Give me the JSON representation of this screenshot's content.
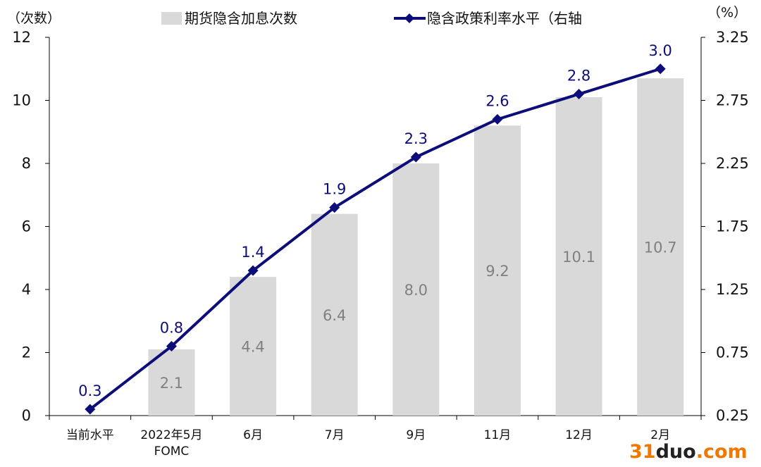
{
  "chart_data": {
    "type": "bar+line",
    "left_axis_unit": "（次数）",
    "right_axis_unit": "（%）",
    "categories": [
      "当前水平",
      "2022年5月\nFOMC",
      "6月",
      "7月",
      "9月",
      "11月",
      "12月",
      "2月"
    ],
    "series": [
      {
        "name": "期货隐含加息次数",
        "type": "bar",
        "axis": "left",
        "values": [
          null,
          2.1,
          4.4,
          6.4,
          8.0,
          9.2,
          10.1,
          10.7
        ],
        "labels": [
          "",
          "2.1",
          "4.4",
          "6.4",
          "8.0",
          "9.2",
          "10.1",
          "10.7"
        ]
      },
      {
        "name": "隐含政策利率水平（右轴",
        "type": "line",
        "axis": "right",
        "marker": "diamond",
        "values": [
          0.3,
          0.8,
          1.4,
          1.9,
          2.3,
          2.6,
          2.8,
          3.0
        ],
        "labels": [
          "0.3",
          "0.8",
          "1.4",
          "1.9",
          "2.3",
          "2.6",
          "2.8",
          "3.0"
        ]
      }
    ],
    "left_axis": {
      "min": 0,
      "max": 12,
      "ticks": [
        "0",
        "2",
        "4",
        "6",
        "8",
        "10",
        "12"
      ]
    },
    "right_axis": {
      "min": 0.25,
      "max": 3.25,
      "ticks": [
        "0.25",
        "0.75",
        "1.25",
        "1.75",
        "2.25",
        "2.75",
        "3.25"
      ]
    },
    "grid": false,
    "legend_position": "top",
    "colors": {
      "bar": "#d9d9d9",
      "line": "#0d0d7a",
      "bar_label": "#808080",
      "line_label": "#0d0d7a"
    }
  },
  "watermark": {
    "text_a": "31",
    "text_b": "duo",
    "text_c": ".com",
    "color_a": "#f07800",
    "color_b": "#222222"
  }
}
